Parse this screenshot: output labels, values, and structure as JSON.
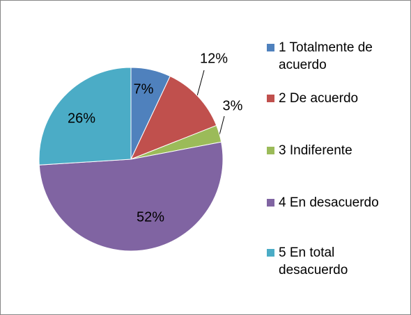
{
  "chart_data": {
    "type": "pie",
    "categories": [
      "1 Totalmente de acuerdo",
      "2 De acuerdo",
      "3 Indiferente",
      "4 En desacuerdo",
      "5 En total desacuerdo"
    ],
    "values": [
      7,
      12,
      3,
      52,
      26
    ],
    "value_labels": [
      "7%",
      "12%",
      "3%",
      "52%",
      "26%"
    ],
    "colors": [
      "#4f81bd",
      "#c0504d",
      "#9bbb59",
      "#8064a2",
      "#4bacc6"
    ],
    "legend": "right"
  }
}
